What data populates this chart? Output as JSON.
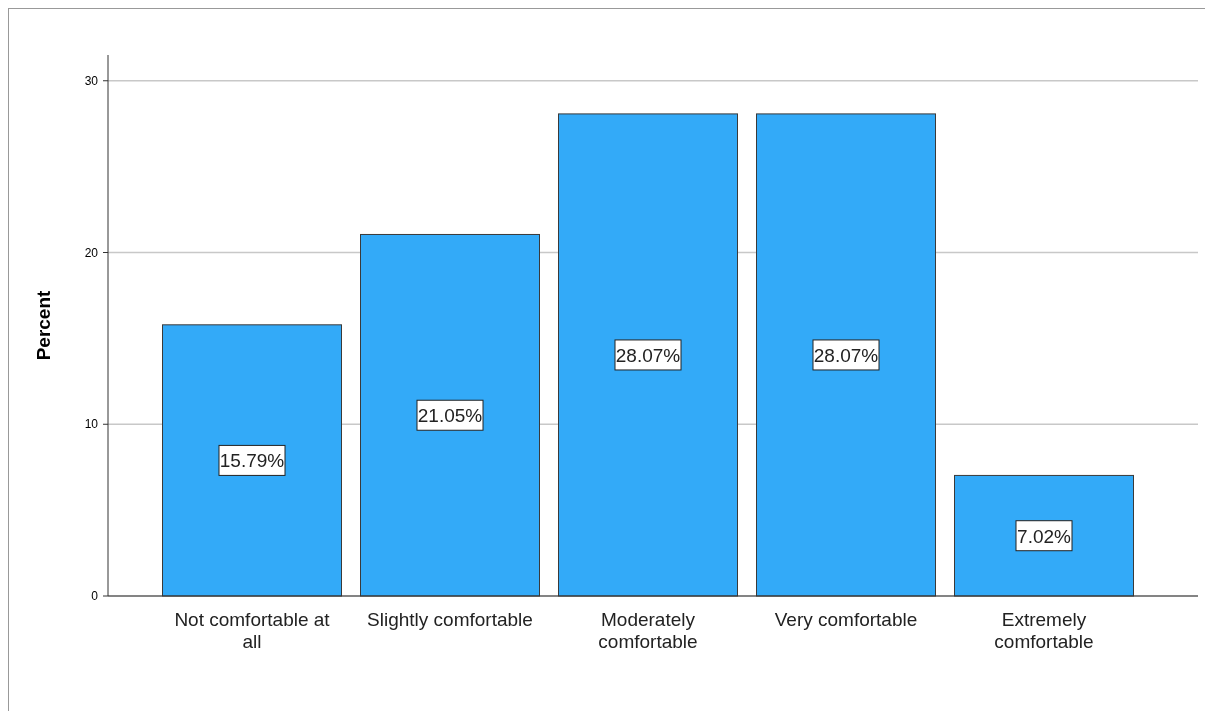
{
  "chart_data": {
    "type": "bar",
    "ylabel": "Percent",
    "categories": [
      "Not comfortable at all",
      "Slightly comfortable",
      "Moderately comfortable",
      "Very comfortable",
      "Extremely comfortable"
    ],
    "values": [
      15.79,
      21.05,
      28.07,
      28.07,
      7.02
    ],
    "value_labels": [
      "15.79%",
      "21.05%",
      "28.07%",
      "28.07%",
      "7.02%"
    ],
    "color": "#33aaf8",
    "ylim": [
      0,
      31.5
    ],
    "yticks": [
      0,
      10,
      20,
      30
    ],
    "grid": "y"
  }
}
